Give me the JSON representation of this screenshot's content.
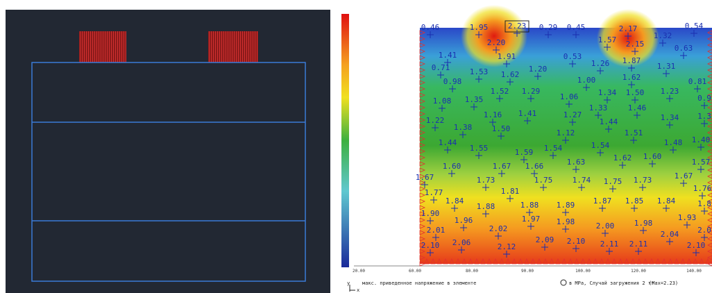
{
  "right_panel": {
    "contour_labels": [
      "0.46",
      "1.95",
      "2.23",
      "0.29",
      "0.45",
      "2.17",
      "0.54",
      "2.20",
      "1.57",
      "2.15",
      "1.32",
      "0.63",
      "1.41",
      "1.91",
      "0.53",
      "1.26",
      "1.87",
      "1.31",
      "0.71",
      "1.53",
      "1.62",
      "1.20",
      "1.00",
      "1.62",
      "0.81",
      "0.98",
      "1.52",
      "1.29",
      "1.06",
      "1.34",
      "1.50",
      "1.23",
      "0.9",
      "1.08",
      "1.35",
      "1.33",
      "1.46",
      "1.16",
      "1.41",
      "1.27",
      "1.44",
      "1.34",
      "1.3",
      "1.22",
      "1.38",
      "1.50",
      "1.12",
      "1.51",
      "1.44",
      "1.55",
      "1.59",
      "1.54",
      "1.54",
      "1.48",
      "1.40",
      "1.62",
      "1.60",
      "1.63",
      "1.57",
      "1.60",
      "1.67",
      "1.66",
      "1.67",
      "1.73",
      "1.75",
      "1.74",
      "1.75",
      "1.73",
      "1.67",
      "1.81",
      "1.77",
      "1.76",
      "1.84",
      "1.88",
      "1.88",
      "1.89",
      "1.87",
      "1.85",
      "1.84",
      "1.8",
      "1.90",
      "1.96",
      "1.97",
      "1.98",
      "1.93",
      "2.01",
      "2.02",
      "2.00",
      "1.98",
      "2.04",
      "2.0",
      "2.10",
      "2.06",
      "2.12",
      "2.09",
      "2.10",
      "2.11",
      "2.11",
      "2.10"
    ],
    "axis_labels": [
      "20.00",
      "60.00",
      "80.00",
      "90.00",
      "100.00",
      "120.00",
      "140.00"
    ],
    "caption": "макс. приведенное напряжение в элементе",
    "units": "в MPa, Случай загружения 2 тт",
    "max": "(Max=2.23)",
    "axis_y": "y",
    "axis_x": "x"
  }
}
